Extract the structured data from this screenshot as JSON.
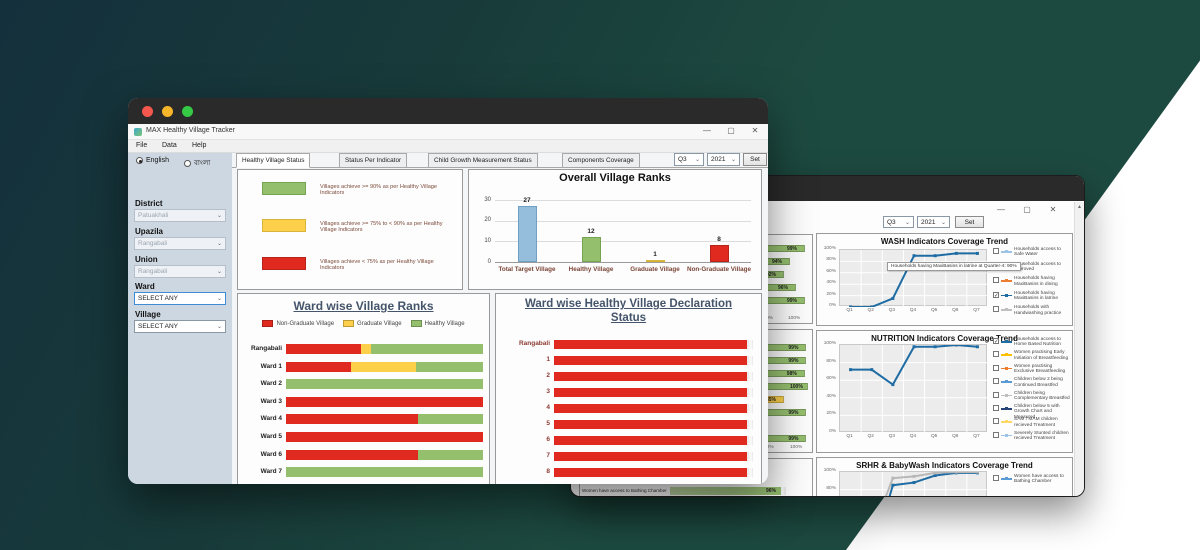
{
  "window_controls": {
    "minimize": "—",
    "maximize": "▢",
    "close": "✕"
  },
  "front_window": {
    "title": "MAX Healthy Village Tracker",
    "menus": [
      "File",
      "Data",
      "Help"
    ],
    "language_options": [
      {
        "label": "English",
        "selected": true
      },
      {
        "label": "বাংলা",
        "selected": false
      }
    ],
    "tabs": [
      "Healthy Village Status",
      "Status Per Indicator",
      "Child Growth Measurement Status",
      "Components Coverage"
    ],
    "active_tab": "Healthy Village Status",
    "period": {
      "quarter": "Q3",
      "year": "2021",
      "set_label": "Set"
    },
    "filters": [
      {
        "label": "District",
        "value": "Patuakhali",
        "enabled": false
      },
      {
        "label": "Upazila",
        "value": "Rangabali",
        "enabled": false
      },
      {
        "label": "Union",
        "value": "Rangabali",
        "enabled": false
      },
      {
        "label": "Ward",
        "value": "SELECT ANY",
        "enabled": true
      },
      {
        "label": "Village",
        "value": "SELECT ANY",
        "enabled": true
      }
    ],
    "legend_panel": [
      {
        "color": "#94bf6d",
        "text": "Villages achieve >= 90% as per Healthy Village Indicators"
      },
      {
        "color": "#fcd04b",
        "text": "Villages achieve >= 75% to < 90% as per Healthy Village Indicators"
      },
      {
        "color": "#e02a20",
        "text": "Villages achieve < 75% as per Healthy Village Indicators"
      }
    ]
  },
  "back_window": {
    "period": {
      "quarter": "Q3",
      "year": "2021",
      "set_label": "Set"
    }
  },
  "chart_data": [
    {
      "id": "overall",
      "type": "bar",
      "title": "Overall Village Ranks",
      "categories": [
        "Total Target Village",
        "Healthy Village",
        "Graduate Village",
        "Non-Graduate Village"
      ],
      "values": [
        27,
        12,
        1,
        8
      ],
      "colors": [
        "#94bedc",
        "#94bf6d",
        "#fcd04b",
        "#e02a20"
      ],
      "border_colors": [
        "#6fa0c4",
        "#76a352",
        "#d9b43a",
        "#b7231b"
      ],
      "yticks": [
        0,
        10,
        20,
        30
      ],
      "ylim": [
        0,
        30
      ]
    },
    {
      "id": "ward_ranks",
      "type": "stacked-hbar",
      "title": "Ward wise Village Ranks",
      "legend": [
        {
          "label": "Non-Graduate Village",
          "color": "#e02a20"
        },
        {
          "label": "Graduate Village",
          "color": "#fcd04b"
        },
        {
          "label": "Healthy Village",
          "color": "#94bf6d"
        }
      ],
      "rows": [
        {
          "label": "Rangabali",
          "segments": [
            38,
            5,
            57
          ]
        },
        {
          "label": "Ward 1",
          "segments": [
            33,
            33,
            34
          ]
        },
        {
          "label": "Ward 2",
          "segments": [
            0,
            0,
            100
          ]
        },
        {
          "label": "Ward 3",
          "segments": [
            100,
            0,
            0
          ]
        },
        {
          "label": "Ward 4",
          "segments": [
            67,
            0,
            33
          ]
        },
        {
          "label": "Ward 5",
          "segments": [
            100,
            0,
            0
          ]
        },
        {
          "label": "Ward 6",
          "segments": [
            67,
            0,
            33
          ]
        },
        {
          "label": "Ward 7",
          "segments": [
            0,
            0,
            100
          ]
        }
      ]
    },
    {
      "id": "declaration",
      "type": "hbar",
      "title": "Ward wise Healthy Village Declaration Status",
      "categories": [
        "Rangabali",
        "1",
        "2",
        "3",
        "4",
        "5",
        "6",
        "7",
        "8"
      ],
      "values": [
        100,
        100,
        100,
        100,
        100,
        100,
        100,
        100,
        100
      ],
      "color": "#e02a20"
    },
    {
      "id": "left_top",
      "type": "hbar",
      "values": [
        99,
        94,
        92,
        96,
        99
      ],
      "labels": [
        "99%",
        "94%",
        "92%",
        "96%",
        "99%"
      ],
      "colors": [
        "#94bf6d",
        "#94bf6d",
        "#94bf6d",
        "#94bf6d",
        "#94bf6d"
      ],
      "axis": [
        "0%",
        "100%"
      ]
    },
    {
      "id": "left_mid",
      "type": "hbar",
      "values": [
        99,
        99,
        98,
        100,
        85,
        99,
        null,
        99
      ],
      "labels": [
        "99%",
        "99%",
        "98%",
        "100%",
        "85%",
        "99%",
        "",
        "99%"
      ],
      "colors": [
        "#94bf6d",
        "#94bf6d",
        "#94bf6d",
        "#94bf6d",
        "#fcd04b",
        "#94bf6d",
        "",
        "#94bf6d"
      ],
      "axis": [
        "80%",
        "100%"
      ]
    },
    {
      "id": "left_bottom_row",
      "type": "hbar",
      "label": "Women have access to Bathing Chamber",
      "value": 96,
      "value_label": "96%",
      "color": "#94bf6d"
    },
    {
      "id": "wash",
      "type": "line",
      "title": "WASH Indicators Coverage Trend",
      "x": [
        "Q1",
        "Q2",
        "Q3",
        "Q4",
        "Q5",
        "Q6",
        "Q7"
      ],
      "yticks": [
        "0%",
        "20%",
        "40%",
        "60%",
        "80%",
        "100%"
      ],
      "series": [
        {
          "name": "Households having MaxiBasins in latrine",
          "color": "#1e6ca3",
          "values": [
            0,
            0,
            15,
            90,
            90,
            94,
            94
          ]
        }
      ],
      "tooltip": "Households having MaxiBasins in latrine at Quarter-4: 90%",
      "legend": [
        {
          "checked": false,
          "color": "#9dc3e6",
          "label": "Households access to Safe Water"
        },
        {
          "checked": false,
          "color": "#a6a6a6",
          "label": "Households access to Improved"
        },
        {
          "checked": false,
          "color": "#ed7d31",
          "label": "Households having MaxiBasins in dining"
        },
        {
          "checked": true,
          "color": "#1e6ca3",
          "label": "Households having MaxiBasins in latrine"
        },
        {
          "checked": false,
          "color": "#bfbfbf",
          "label": "Households with Handwashing practice"
        }
      ]
    },
    {
      "id": "nutrition",
      "type": "line",
      "title": "NUTRITION Indicators Coverage Trend",
      "x": [
        "Q1",
        "Q2",
        "Q3",
        "Q4",
        "Q5",
        "Q6",
        "Q7"
      ],
      "yticks": [
        "0%",
        "20%",
        "40%",
        "60%",
        "80%",
        "100%"
      ],
      "series": [
        {
          "name": "Households access to Home Based Nutrition",
          "color": "#1e6ca3",
          "values": [
            72,
            72,
            55,
            98,
            98,
            100,
            98
          ]
        }
      ],
      "legend": [
        {
          "checked": true,
          "color": "#1e6ca3",
          "label": "Households access to Home Based Nutrition"
        },
        {
          "checked": false,
          "color": "#ffc000",
          "label": "Women practising Early Initiation of Breastfeeding"
        },
        {
          "checked": false,
          "color": "#ed7d31",
          "label": "Women practising Exclusive Breastfeeding"
        },
        {
          "checked": false,
          "color": "#5b9bd5",
          "label": "Children below 2 being Continued Breastfed"
        },
        {
          "checked": false,
          "color": "#bfbfbf",
          "label": "Children being Complementary Breastfed"
        },
        {
          "checked": false,
          "color": "#264478",
          "label": "Children below 5 with Growth Chart and Measured"
        },
        {
          "checked": false,
          "color": "#ffd966",
          "label": "SAM / MAM children recieved Treatment"
        },
        {
          "checked": false,
          "color": "#9dc3e6",
          "label": "Severely Stunted children recieved Treatment"
        }
      ]
    },
    {
      "id": "srhr",
      "type": "line",
      "title": "SRHR & BabyWash Indicators Coverage Trend",
      "x": [
        "Q1",
        "Q2",
        "Q3",
        "Q4",
        "Q5",
        "Q6",
        "Q7"
      ],
      "yticks": [
        "0%",
        "20%",
        "40%",
        "60%",
        "80%",
        "100%"
      ],
      "series": [
        {
          "name": "Women have access to Bathing Chamber",
          "color": "#1e6ca3",
          "values": [
            0,
            2,
            85,
            88,
            96,
            99,
            99
          ]
        },
        {
          "name": "",
          "color": "#b7b7b7",
          "values": [
            0,
            30,
            93,
            95,
            99,
            100,
            100
          ]
        }
      ],
      "legend": [
        {
          "checked": false,
          "color": "#5b9bd5",
          "label": "Women have access to Bathing Chamber"
        }
      ]
    }
  ]
}
